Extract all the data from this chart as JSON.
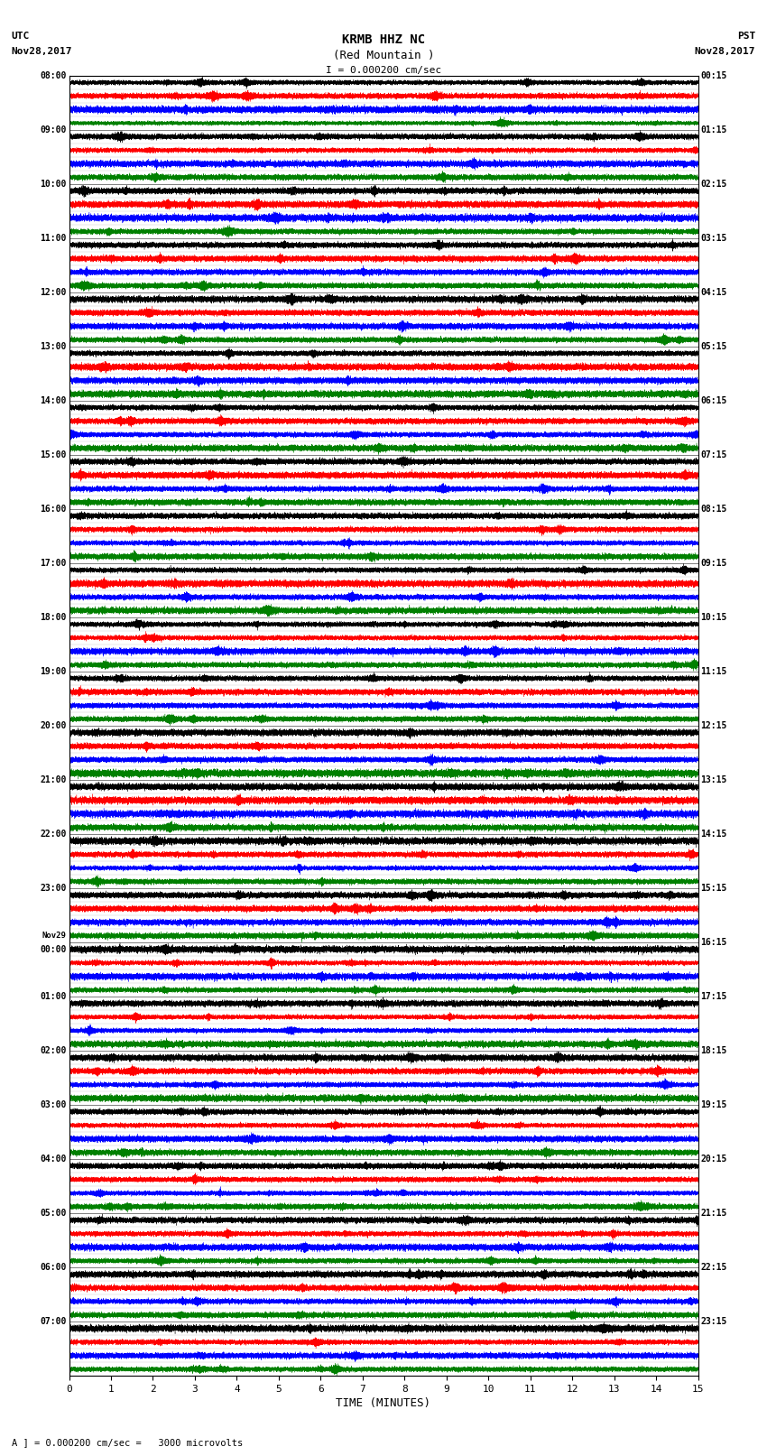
{
  "title_line1": "KRMB HHZ NC",
  "title_line2": "(Red Mountain )",
  "scale_label": "I = 0.000200 cm/sec",
  "left_header_line1": "UTC",
  "left_header_line2": "Nov28,2017",
  "right_header_line1": "PST",
  "right_header_line2": "Nov28,2017",
  "xlabel": "TIME (MINUTES)",
  "bottom_note": "A ] = 0.000200 cm/sec =   3000 microvolts",
  "left_times": [
    "08:00",
    "09:00",
    "10:00",
    "11:00",
    "12:00",
    "13:00",
    "14:00",
    "15:00",
    "16:00",
    "17:00",
    "18:00",
    "19:00",
    "20:00",
    "21:00",
    "22:00",
    "23:00",
    "Nov29\n00:00",
    "01:00",
    "02:00",
    "03:00",
    "04:00",
    "05:00",
    "06:00",
    "07:00"
  ],
  "right_times": [
    "00:15",
    "01:15",
    "02:15",
    "03:15",
    "04:15",
    "05:15",
    "06:15",
    "07:15",
    "08:15",
    "09:15",
    "10:15",
    "11:15",
    "12:15",
    "13:15",
    "14:15",
    "15:15",
    "16:15",
    "17:15",
    "18:15",
    "19:15",
    "20:15",
    "21:15",
    "22:15",
    "23:15"
  ],
  "xticks": [
    0,
    1,
    2,
    3,
    4,
    5,
    6,
    7,
    8,
    9,
    10,
    11,
    12,
    13,
    14,
    15
  ],
  "num_rows": 24,
  "traces_per_row": 4,
  "bg_color": "#ffffff",
  "trace_color_order": [
    "black",
    "red",
    "blue",
    "green"
  ],
  "fig_width": 8.5,
  "fig_height": 16.13,
  "dpi": 100
}
